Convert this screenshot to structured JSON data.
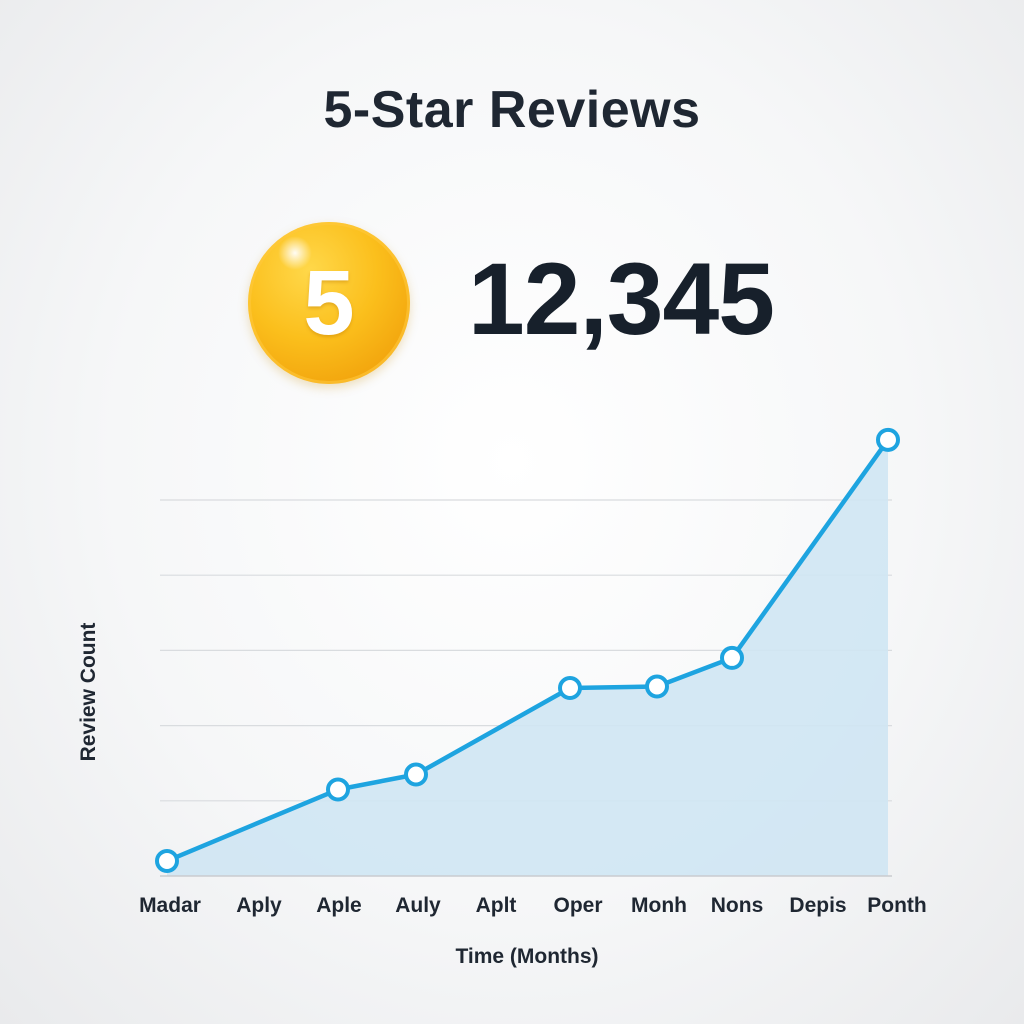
{
  "header": {
    "title": "5-Star Reviews"
  },
  "summary": {
    "badge_value": "5",
    "total_reviews": "12,345"
  },
  "colors": {
    "line": "#1ea4e0",
    "area": "#cfe5f3",
    "badge": "#fbbf1c"
  },
  "chart_data": {
    "type": "area",
    "categories": [
      "Madar",
      "Aply",
      "Aple",
      "Auly",
      "Aplt",
      "Oper",
      "Monh",
      "Nons",
      "Depis",
      "Ponth"
    ],
    "xlabel": "Time (Months)",
    "ylabel": "Review Count",
    "grid": true,
    "legend": "none",
    "points": [
      {
        "x": "Madar",
        "y": 0.2
      },
      {
        "x": "Aple",
        "y": 1.15
      },
      {
        "x": "Auly",
        "y": 1.35
      },
      {
        "x": "Oper",
        "y": 2.5
      },
      {
        "x": "Monh",
        "y": 2.52
      },
      {
        "x": "Nons",
        "y": 2.9
      },
      {
        "x": "Ponth",
        "y": 5.8
      }
    ],
    "ylim": [
      0,
      5
    ]
  }
}
